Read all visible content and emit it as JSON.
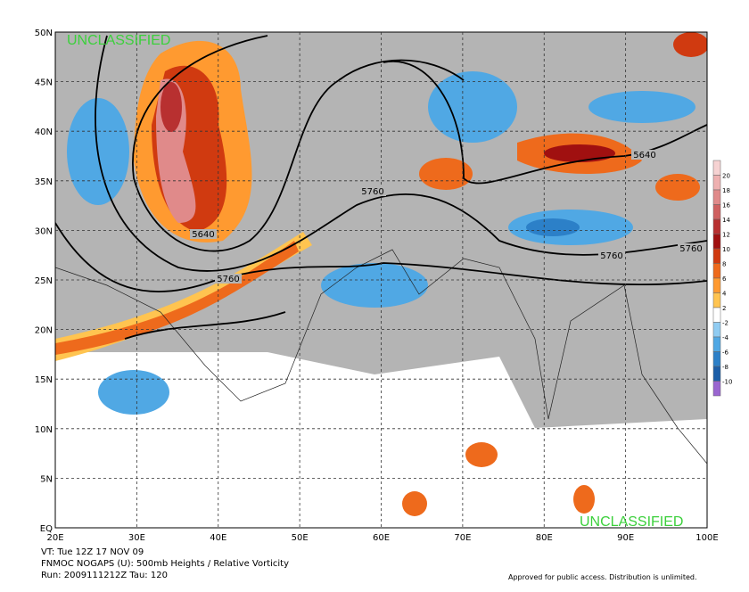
{
  "header": {
    "classification_top": "UNCLASSIFIED",
    "classification_bottom": "UNCLASSIFIED"
  },
  "map": {
    "lon_labels": [
      "20E",
      "30E",
      "40E",
      "50E",
      "60E",
      "70E",
      "80E",
      "90E",
      "100E"
    ],
    "lat_labels": [
      "EQ",
      "5N",
      "10N",
      "15N",
      "20N",
      "25N",
      "30N",
      "35N",
      "40N",
      "45N",
      "50N"
    ],
    "contour_labels": [
      "5640",
      "5760",
      "5760",
      "5640",
      "5760",
      "5760"
    ]
  },
  "colorbar": [
    {
      "label": 20,
      "color": "#f6d2d2"
    },
    {
      "label": 18,
      "color": "#eeb0b0"
    },
    {
      "label": 16,
      "color": "#e08a8a"
    },
    {
      "label": 14,
      "color": "#cf6060"
    },
    {
      "label": 12,
      "color": "#b83030"
    },
    {
      "label": 10,
      "color": "#a01010"
    },
    {
      "label": 8,
      "color": "#d03a10"
    },
    {
      "label": 6,
      "color": "#ee6a1c"
    },
    {
      "label": 4,
      "color": "#ff9a30"
    },
    {
      "label": 2,
      "color": "#ffc450"
    },
    {
      "label": -2,
      "color": "#90ccf2"
    },
    {
      "label": -4,
      "color": "#50a8e4"
    },
    {
      "label": -6,
      "color": "#2c80c8"
    },
    {
      "label": -8,
      "color": "#1c5ea8"
    },
    {
      "label": -10,
      "color": "#9a66d0"
    }
  ],
  "footer": {
    "valid_time": "VT: Tue 12Z 17 NOV 09",
    "product": "FNMOC NOGAPS (U): 500mb Heights / Relative Vorticity",
    "run": "Run: 2009111212Z Tau: 120",
    "disclaimer": "Approved for public access. Distribution is unlimited."
  }
}
